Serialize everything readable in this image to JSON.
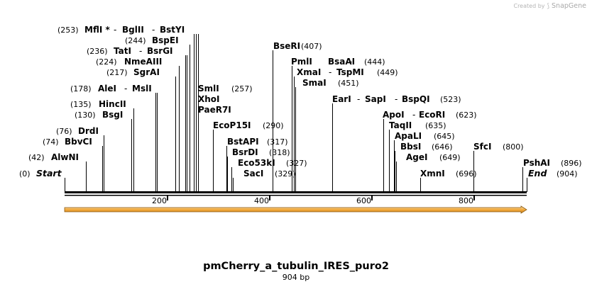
{
  "credit": {
    "label": "Created by",
    "brand": "SnapGene",
    "logo_icon": "snapgene-logo-icon"
  },
  "sequence": {
    "name": "pmCherry_a_tubulin_IRES_puro2",
    "length_label": "904 bp",
    "length_bp": 904
  },
  "axis": {
    "ticks": [
      {
        "value": 200,
        "label": "200"
      },
      {
        "value": 400,
        "label": "400"
      },
      {
        "value": 600,
        "label": "600"
      },
      {
        "value": 800,
        "label": "800"
      }
    ]
  },
  "feature": {
    "type": "orf-arrow",
    "start_bp": 0,
    "end_bp": 904,
    "color": "#F2A93B"
  },
  "colors": {
    "line": "#000000",
    "text": "#000000",
    "credit": "#b5b5b5"
  },
  "sites": [
    {
      "name": "MflI *",
      "pos": 253,
      "pos_label": "(253)",
      "italic": false,
      "group": [
        "MflI *",
        "BglII",
        "BstYI"
      ]
    },
    {
      "name": "BglII",
      "pos": 257,
      "pos_label": "",
      "italic": false
    },
    {
      "name": "BstYI",
      "pos": 261,
      "pos_label": "",
      "italic": false
    },
    {
      "name": "BspEI",
      "pos": 244,
      "pos_label": "(244)",
      "italic": false
    },
    {
      "name": "TatI",
      "pos": 236,
      "pos_label": "(236)",
      "italic": false
    },
    {
      "name": "BsrGI",
      "pos": 239,
      "pos_label": "",
      "italic": false
    },
    {
      "name": "NmeAIII",
      "pos": 224,
      "pos_label": "(224)",
      "italic": false
    },
    {
      "name": "SgrAI",
      "pos": 217,
      "pos_label": "(217)",
      "italic": false
    },
    {
      "name": "AleI",
      "pos": 178,
      "pos_label": "(178)",
      "italic": false
    },
    {
      "name": "MslI",
      "pos": 181,
      "pos_label": "",
      "italic": false
    },
    {
      "name": "HincII",
      "pos": 135,
      "pos_label": "(135)",
      "italic": false
    },
    {
      "name": "BsgI",
      "pos": 130,
      "pos_label": "(130)",
      "italic": false
    },
    {
      "name": "DrdI",
      "pos": 76,
      "pos_label": "(76)",
      "italic": false
    },
    {
      "name": "BbvCI",
      "pos": 74,
      "pos_label": "(74)",
      "italic": false
    },
    {
      "name": "AlwNI",
      "pos": 42,
      "pos_label": "(42)",
      "italic": false
    },
    {
      "name": "Start",
      "pos": 0,
      "pos_label": "(0)",
      "italic": true
    },
    {
      "name": "SmlI",
      "pos": 257,
      "pos_label": "(257)",
      "italic": false
    },
    {
      "name": "XhoI",
      "pos": 257,
      "pos_label": "",
      "italic": false
    },
    {
      "name": "PaeR7I",
      "pos": 257,
      "pos_label": "",
      "italic": false
    },
    {
      "name": "EcoP15I",
      "pos": 290,
      "pos_label": "(290)",
      "italic": false
    },
    {
      "name": "BstAPI",
      "pos": 317,
      "pos_label": "(317)",
      "italic": false
    },
    {
      "name": "BsrDI",
      "pos": 318,
      "pos_label": "(318)",
      "italic": false
    },
    {
      "name": "Eco53kI",
      "pos": 327,
      "pos_label": "(327)",
      "italic": false
    },
    {
      "name": "SacI",
      "pos": 329,
      "pos_label": "(329)",
      "italic": false
    },
    {
      "name": "BseRI",
      "pos": 407,
      "pos_label": "(407)",
      "italic": false
    },
    {
      "name": "PmlI",
      "pos": 444,
      "pos_label": "(444)",
      "italic": false
    },
    {
      "name": "BsaAI",
      "pos": 444,
      "pos_label": "",
      "italic": false
    },
    {
      "name": "XmaI",
      "pos": 449,
      "pos_label": "(449)",
      "italic": false
    },
    {
      "name": "TspMI",
      "pos": 449,
      "pos_label": "",
      "italic": false
    },
    {
      "name": "SmaI",
      "pos": 451,
      "pos_label": "(451)",
      "italic": false
    },
    {
      "name": "EarI",
      "pos": 523,
      "pos_label": "(523)",
      "italic": false
    },
    {
      "name": "SapI",
      "pos": 523,
      "pos_label": "",
      "italic": false
    },
    {
      "name": "BspQI",
      "pos": 523,
      "pos_label": "",
      "italic": false
    },
    {
      "name": "ApoI",
      "pos": 623,
      "pos_label": "(623)",
      "italic": false
    },
    {
      "name": "EcoRI",
      "pos": 623,
      "pos_label": "",
      "italic": false
    },
    {
      "name": "TaqII",
      "pos": 635,
      "pos_label": "(635)",
      "italic": false
    },
    {
      "name": "ApaLI",
      "pos": 645,
      "pos_label": "(645)",
      "italic": false
    },
    {
      "name": "BbsI",
      "pos": 646,
      "pos_label": "(646)",
      "italic": false
    },
    {
      "name": "AgeI",
      "pos": 649,
      "pos_label": "(649)",
      "italic": false
    },
    {
      "name": "XmnI",
      "pos": 696,
      "pos_label": "(696)",
      "italic": false
    },
    {
      "name": "SfcI",
      "pos": 800,
      "pos_label": "(800)",
      "italic": false
    },
    {
      "name": "PshAI",
      "pos": 896,
      "pos_label": "(896)",
      "italic": false
    },
    {
      "name": "End",
      "pos": 904,
      "pos_label": "(904)",
      "italic": true
    }
  ]
}
